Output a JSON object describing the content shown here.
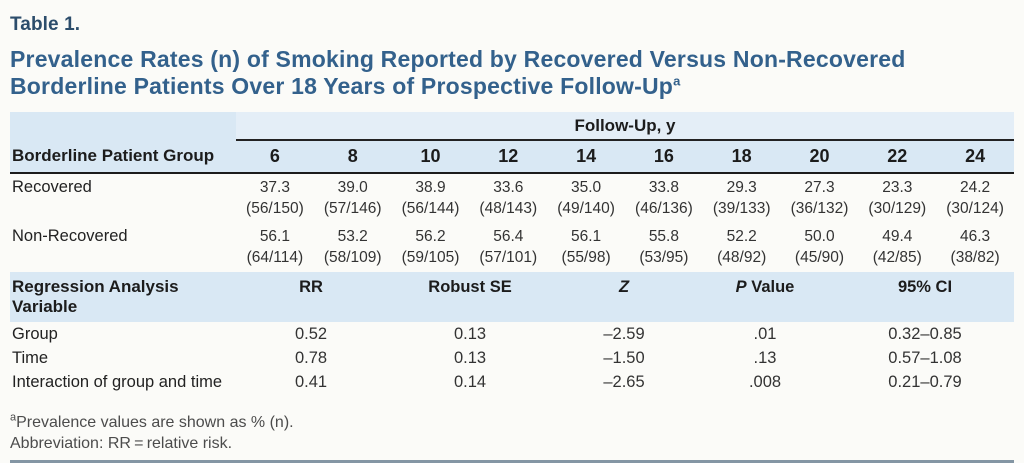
{
  "page": {
    "table_label": "Table 1.",
    "title_line1": "Prevalence Rates (n) of Smoking Reported by Recovered Versus Non-Recovered",
    "title_line2": "Borderline Patients Over 18 Years of Prospective Follow-Up",
    "title_superscript": "a"
  },
  "colors": {
    "title_color": "#33618c",
    "label_color": "#2c4d6b",
    "band": "#d9e8f4",
    "spanner_band": "#e4eef7",
    "rule": "#8496a4"
  },
  "followup_table": {
    "spanner_header": "Follow-Up, y",
    "row_group_header": "Borderline Patient Group",
    "columns": [
      "6",
      "8",
      "10",
      "12",
      "14",
      "16",
      "18",
      "20",
      "22",
      "24"
    ],
    "rows": [
      {
        "label": "Recovered",
        "values": [
          "37.3",
          "39.0",
          "38.9",
          "33.6",
          "35.0",
          "33.8",
          "29.3",
          "27.3",
          "23.3",
          "24.2"
        ],
        "counts": [
          "(56/150)",
          "(57/146)",
          "(56/144)",
          "(48/143)",
          "(49/140)",
          "(46/136)",
          "(39/133)",
          "(36/132)",
          "(30/129)",
          "(30/124)"
        ]
      },
      {
        "label": "Non-Recovered",
        "values": [
          "56.1",
          "53.2",
          "56.2",
          "56.4",
          "56.1",
          "55.8",
          "52.2",
          "50.0",
          "49.4",
          "46.3"
        ],
        "counts": [
          "(64/114)",
          "(58/109)",
          "(59/105)",
          "(57/101)",
          "(55/98)",
          "(53/95)",
          "(48/92)",
          "(45/90)",
          "(42/85)",
          "(38/82)"
        ]
      }
    ]
  },
  "regression_table": {
    "header": [
      "Regression Analysis Variable",
      "RR",
      "Robust SE",
      "Z",
      "P Value",
      "95% CI"
    ],
    "rows": [
      [
        "Group",
        "0.52",
        "0.13",
        "–2.59",
        ".01",
        "0.32–0.85"
      ],
      [
        "Time",
        "0.78",
        "0.13",
        "–1.50",
        ".13",
        "0.57–1.08"
      ],
      [
        "Interaction of group and time",
        "0.41",
        "0.14",
        "–2.65",
        ".008",
        "0.21–0.79"
      ]
    ]
  },
  "footnotes": {
    "note1_sup": "a",
    "note1": "Prevalence values are shown as % (n).",
    "note2": "Abbreviation: RR = relative risk."
  }
}
